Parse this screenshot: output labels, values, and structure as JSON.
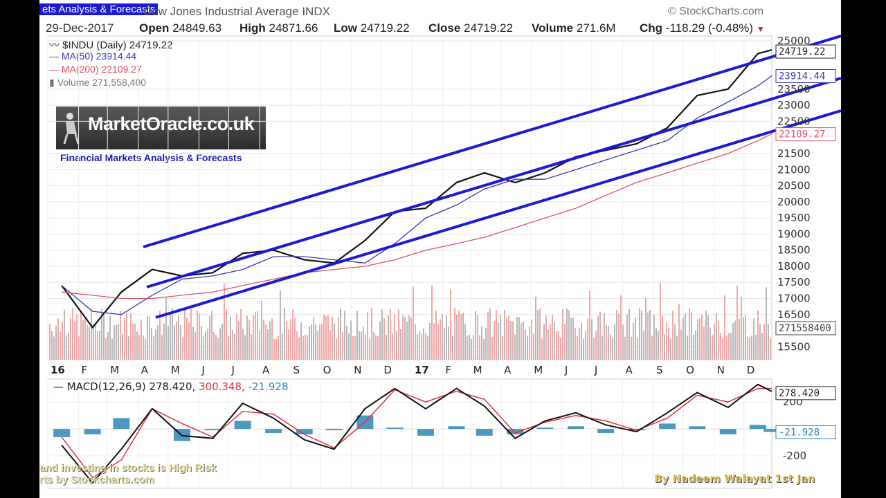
{
  "header": {
    "source_title": "ets Analysis & Forecasts",
    "instrument_title": "Dow Jones Industrial Average INDX",
    "brand": "© StockCharts.com",
    "date": "29-Dec-2017",
    "open_label": "Open",
    "open_value": "24849.63",
    "high_label": "High",
    "high_value": "24871.66",
    "low_label": "Low",
    "low_value": "24719.22",
    "close_label": "Close",
    "close_value": "24719.22",
    "volume_label": "Volume",
    "volume_value": "271.6M",
    "chg_label": "Chg",
    "chg_value": "-118.29 (-0.48%)"
  },
  "legend": {
    "price": "$INDU (Daily) 24719.22",
    "ma50": "MA(50) 23914.44",
    "ma200": "MA(200) 22109.27",
    "volume": "Volume 271,558,400"
  },
  "logo": {
    "brand": "MarketOracle.co.uk",
    "tagline": "Financial Markets Analysis & Forecasts"
  },
  "watermarks": {
    "left_line1": "and investing in stocks is High Risk",
    "left_line2": "rts by Stockcharts.com",
    "right": "By Nadeem Walayat 1st Jan"
  },
  "colors": {
    "price": "#111111",
    "price_down": "#d0202a",
    "ma50": "#3a3ab0",
    "ma200": "#e05060",
    "channel": "#1a1ad8",
    "volume_up": "#b8b8b8",
    "volume_down": "#f0a8a8",
    "macd_line": "#111111",
    "signal_line": "#e03040",
    "histogram": "#2e86b5"
  },
  "chart_data": [
    {
      "type": "line",
      "title": "$INDU (Daily)",
      "x_ticks": [
        "16",
        "F",
        "M",
        "A",
        "M",
        "J",
        "J",
        "A",
        "S",
        "O",
        "N",
        "D",
        "17",
        "F",
        "M",
        "A",
        "M",
        "J",
        "J",
        "A",
        "S",
        "O",
        "N",
        "D"
      ],
      "y_ticks": [
        15500,
        16500,
        17000,
        17500,
        18000,
        18500,
        19000,
        19500,
        20000,
        20500,
        21000,
        21500,
        22500,
        23000,
        23500,
        25000
      ],
      "ylim": [
        15100,
        25150
      ],
      "series": [
        {
          "name": "$INDU (Daily)",
          "x": [
            "2016-01",
            "2016-02",
            "2016-03",
            "2016-04",
            "2016-05",
            "2016-06",
            "2016-07",
            "2016-08",
            "2016-09",
            "2016-10",
            "2016-11",
            "2016-12",
            "2017-01",
            "2017-02",
            "2017-03",
            "2017-04",
            "2017-05",
            "2017-06",
            "2017-07",
            "2017-08",
            "2017-09",
            "2017-10",
            "2017-11",
            "2017-12",
            "2017-12-29"
          ],
          "values": [
            17400,
            16100,
            17200,
            17900,
            17700,
            17800,
            18400,
            18500,
            18200,
            18100,
            18800,
            19700,
            19800,
            20600,
            20900,
            20600,
            20900,
            21400,
            21600,
            21800,
            22300,
            23300,
            23500,
            24600,
            24719.22
          ]
        },
        {
          "name": "MA(50)",
          "x": [
            "2016-01",
            "2016-02",
            "2016-03",
            "2016-04",
            "2016-05",
            "2016-06",
            "2016-07",
            "2016-08",
            "2016-09",
            "2016-10",
            "2016-11",
            "2016-12",
            "2017-01",
            "2017-02",
            "2017-03",
            "2017-04",
            "2017-05",
            "2017-06",
            "2017-07",
            "2017-08",
            "2017-09",
            "2017-10",
            "2017-11",
            "2017-12",
            "2017-12-29"
          ],
          "values": [
            17400,
            16600,
            16500,
            17100,
            17600,
            17700,
            17900,
            18300,
            18300,
            18200,
            18100,
            18700,
            19500,
            19900,
            20400,
            20700,
            20700,
            21000,
            21300,
            21600,
            21900,
            22600,
            23100,
            23600,
            23914.44
          ]
        },
        {
          "name": "MA(200)",
          "x": [
            "2016-01",
            "2016-02",
            "2016-03",
            "2016-04",
            "2016-05",
            "2016-06",
            "2016-07",
            "2016-08",
            "2016-09",
            "2016-10",
            "2016-11",
            "2016-12",
            "2017-01",
            "2017-02",
            "2017-03",
            "2017-04",
            "2017-05",
            "2017-06",
            "2017-07",
            "2017-08",
            "2017-09",
            "2017-10",
            "2017-11",
            "2017-12",
            "2017-12-29"
          ],
          "values": [
            17200,
            17100,
            17000,
            17000,
            17100,
            17200,
            17400,
            17600,
            17800,
            17900,
            18000,
            18200,
            18500,
            18700,
            18900,
            19200,
            19500,
            19800,
            20200,
            20600,
            20900,
            21200,
            21500,
            21900,
            22109.27
          ]
        }
      ],
      "annotations": [
        "24719.22",
        "23914.44",
        "22109.27",
        "271558400"
      ]
    },
    {
      "type": "bar",
      "title": "Volume",
      "x_ticks": [
        "16",
        "F",
        "M",
        "A",
        "M",
        "J",
        "J",
        "A",
        "S",
        "O",
        "N",
        "D",
        "17",
        "F",
        "M",
        "A",
        "M",
        "J",
        "J",
        "A",
        "S",
        "O",
        "N",
        "D"
      ],
      "last_value": 271558400
    },
    {
      "type": "line",
      "title": "MACD(12,26,9)",
      "y_ticks": [
        200,
        -200
      ],
      "ylim": [
        -440,
        370
      ],
      "series": [
        {
          "name": "MACD",
          "x": [
            "2016-01",
            "2016-02",
            "2016-03",
            "2016-04",
            "2016-05",
            "2016-06",
            "2016-07",
            "2016-08",
            "2016-09",
            "2016-10",
            "2016-11",
            "2016-12",
            "2017-01",
            "2017-02",
            "2017-03",
            "2017-04",
            "2017-05",
            "2017-06",
            "2017-07",
            "2017-08",
            "2017-09",
            "2017-10",
            "2017-11",
            "2017-12",
            "2017-12-29"
          ],
          "values": [
            -120,
            -400,
            -150,
            150,
            -50,
            -70,
            190,
            80,
            -80,
            -150,
            150,
            300,
            150,
            300,
            170,
            -70,
            60,
            120,
            30,
            -20,
            120,
            270,
            160,
            330,
            278.42
          ]
        },
        {
          "name": "Signal",
          "x": [
            "2016-01",
            "2016-02",
            "2016-03",
            "2016-04",
            "2016-05",
            "2016-06",
            "2016-07",
            "2016-08",
            "2016-09",
            "2016-10",
            "2016-11",
            "2016-12",
            "2017-01",
            "2017-02",
            "2017-03",
            "2017-04",
            "2017-05",
            "2017-06",
            "2017-07",
            "2017-08",
            "2017-09",
            "2017-10",
            "2017-11",
            "2017-12",
            "2017-12-29"
          ],
          "values": [
            -60,
            -360,
            -230,
            150,
            40,
            -60,
            130,
            110,
            -40,
            -140,
            50,
            290,
            200,
            280,
            220,
            -30,
            50,
            100,
            60,
            -10,
            80,
            250,
            200,
            300,
            300.348
          ]
        },
        {
          "name": "Histogram",
          "x": [
            "2016-01",
            "2016-02",
            "2016-03",
            "2016-04",
            "2016-05",
            "2016-06",
            "2016-07",
            "2016-08",
            "2016-09",
            "2016-10",
            "2016-11",
            "2016-12",
            "2017-01",
            "2017-02",
            "2017-03",
            "2017-04",
            "2017-05",
            "2017-06",
            "2017-07",
            "2017-08",
            "2017-09",
            "2017-10",
            "2017-11",
            "2017-12",
            "2017-12-29"
          ],
          "values": [
            -60,
            -40,
            80,
            0,
            -90,
            -10,
            60,
            -30,
            -40,
            -10,
            100,
            10,
            -50,
            20,
            -50,
            -40,
            10,
            20,
            -30,
            -10,
            40,
            20,
            -40,
            30,
            -21.928
          ]
        }
      ],
      "legend_values": {
        "macd": "278.420",
        "signal": "300.348",
        "histogram": "-21.928"
      },
      "tags": [
        "278.420",
        "-21.928"
      ]
    }
  ]
}
